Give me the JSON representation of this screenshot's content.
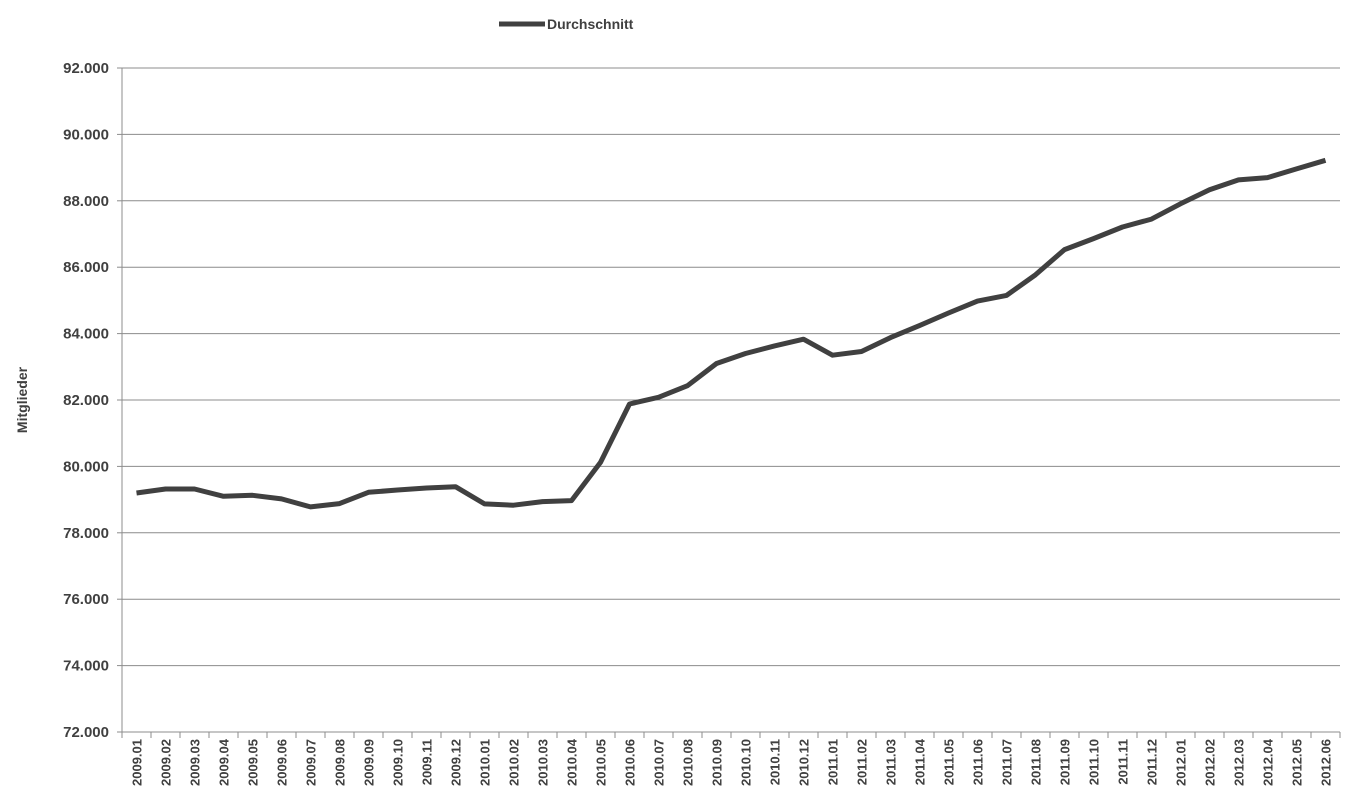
{
  "chart_data": {
    "type": "line",
    "ylabel": "Mitglieder",
    "xlabel": "",
    "ylim": [
      72000,
      92000
    ],
    "y_ticks": [
      72000,
      74000,
      76000,
      78000,
      80000,
      82000,
      84000,
      86000,
      88000,
      90000,
      92000
    ],
    "y_tick_labels": [
      "72.000",
      "74.000",
      "76.000",
      "78.000",
      "80.000",
      "82.000",
      "84.000",
      "86.000",
      "88.000",
      "90.000",
      "92.000"
    ],
    "grid": "horizontal",
    "legend_position": "top",
    "categories": [
      "2009.01",
      "2009.02",
      "2009.03",
      "2009.04",
      "2009.05",
      "2009.06",
      "2009.07",
      "2009.08",
      "2009.09",
      "2009.10",
      "2009.11",
      "2009.12",
      "2010.01",
      "2010.02",
      "2010.03",
      "2010.04",
      "2010.05",
      "2010.06",
      "2010.07",
      "2010.08",
      "2010.09",
      "2010.10",
      "2010.11",
      "2010.12",
      "2011.01",
      "2011.02",
      "2011.03",
      "2011.04",
      "2011.05",
      "2011.06",
      "2011.07",
      "2011.08",
      "2011.09",
      "2011.10",
      "2011.11",
      "2011.12",
      "2012.01",
      "2012.02",
      "2012.03",
      "2012.04",
      "2012.05",
      "2012.06"
    ],
    "series": [
      {
        "name": "Durchschnitt",
        "color": "#404040",
        "values": [
          79200,
          79320,
          79320,
          79100,
          79130,
          79020,
          78780,
          78880,
          79220,
          79290,
          79350,
          79390,
          78870,
          78830,
          78940,
          78970,
          80120,
          81880,
          82080,
          82430,
          83100,
          83400,
          83630,
          83830,
          83350,
          83460,
          83880,
          84240,
          84620,
          84980,
          85150,
          85770,
          86530,
          86860,
          87210,
          87450,
          87910,
          88330,
          88630,
          88700,
          88960,
          89220
        ]
      }
    ]
  }
}
